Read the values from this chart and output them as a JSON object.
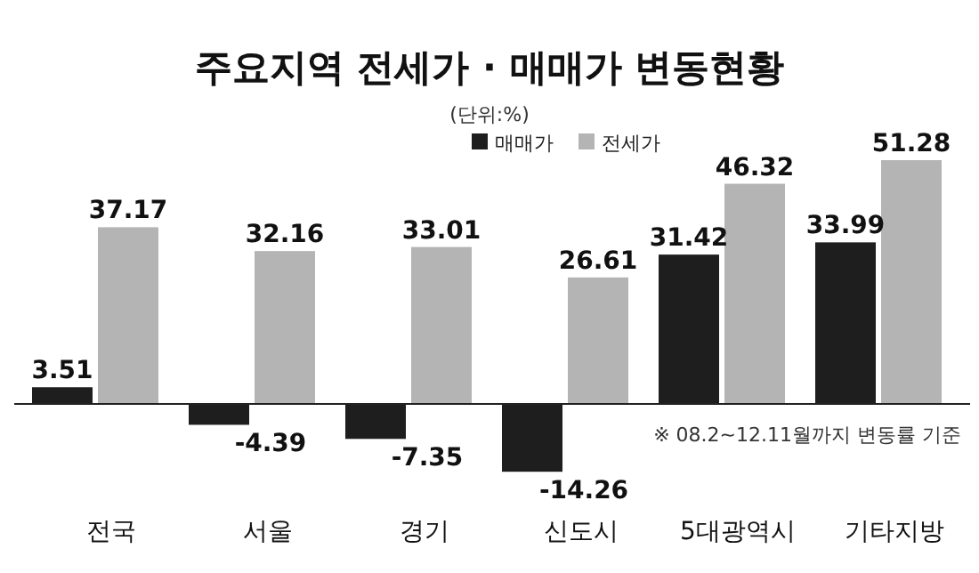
{
  "chart_data": {
    "type": "bar",
    "title": "주요지역 전세가 · 매매가 변동현황",
    "subtitle": "(단위:%)",
    "annotations": [
      "※ 08.2~12.11월까지 변동률 기준"
    ],
    "categories": [
      "전국",
      "서울",
      "경기",
      "신도시",
      "5대광역시",
      "기타지방"
    ],
    "series": [
      {
        "name": "매매가",
        "color": "#1e1e1e",
        "values": [
          3.51,
          -4.39,
          -7.35,
          -14.26,
          31.42,
          33.99
        ]
      },
      {
        "name": "전세가",
        "color": "#b4b4b4",
        "values": [
          37.17,
          32.16,
          33.01,
          26.61,
          46.32,
          51.28
        ]
      }
    ],
    "data_labels": true,
    "legend": "top"
  }
}
